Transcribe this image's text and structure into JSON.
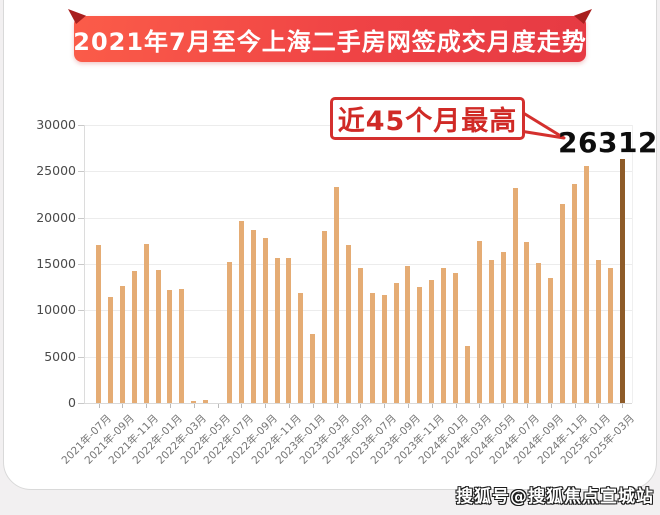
{
  "banner": {
    "title": "2021年7月至今上海二手房网签成交月度走势"
  },
  "annotation": {
    "label": "近45个月最高",
    "value": "26312"
  },
  "watermark": {
    "text": "搜狐号@搜狐焦点宣城站"
  },
  "chart_data": {
    "type": "bar",
    "title": "2021年7月至今上海二手房网签成交月度走势",
    "xlabel": "",
    "ylabel": "",
    "ylim": [
      0,
      30000
    ],
    "yticks": [
      0,
      5000,
      10000,
      15000,
      20000,
      25000,
      30000
    ],
    "grid": true,
    "legend_position": "none",
    "categories": [
      "2021-07",
      "2021-08",
      "2021-09",
      "2021-10",
      "2021-11",
      "2021-12",
      "2022-01",
      "2022-02",
      "2022-03",
      "2022-04",
      "2022-05",
      "2022-06",
      "2022-07",
      "2022-08",
      "2022-09",
      "2022-10",
      "2022-11",
      "2022-12",
      "2023-01",
      "2023-02",
      "2023-03",
      "2023-04",
      "2023-05",
      "2023-06",
      "2023-07",
      "2023-08",
      "2023-09",
      "2023-10",
      "2023-11",
      "2023-12",
      "2024-01",
      "2024-02",
      "2024-03",
      "2024-04",
      "2024-05",
      "2024-06",
      "2024-07",
      "2024-08",
      "2024-09",
      "2024-10",
      "2024-11",
      "2024-12",
      "2025-01",
      "2025-02",
      "2025-03"
    ],
    "values": [
      17100,
      11400,
      12600,
      14200,
      17200,
      14400,
      12200,
      12300,
      250,
      350,
      0,
      15200,
      19600,
      18700,
      17800,
      15700,
      15600,
      11900,
      7500,
      18600,
      23300,
      17000,
      14600,
      11900,
      11700,
      13000,
      14800,
      12500,
      13300,
      14600,
      14000,
      6100,
      17500,
      15400,
      16300,
      23200,
      17400,
      15100,
      13500,
      21500,
      23600,
      25600,
      15400,
      14600,
      26312
    ],
    "highlight_index": 44,
    "highlight_value": 26312,
    "xtick_labels": [
      "2021年-07月",
      "2021年-09月",
      "2021年-11月",
      "2022年-01月",
      "2022年-03月",
      "2022年-05月",
      "2022年-07月",
      "2022年-09月",
      "2022年-11月",
      "2023年-01月",
      "2023年-03月",
      "2023年-05月",
      "2023年-07月",
      "2023年-09月",
      "2023年-11月",
      "2024年-01月",
      "2024年-03月",
      "2024年-05月",
      "2024年-07月",
      "2024年-09月",
      "2024年-11月",
      "2025年-01月",
      "2025年-03月"
    ],
    "bar_color": "#E5AC74",
    "highlight_color": "#8E5B28"
  }
}
